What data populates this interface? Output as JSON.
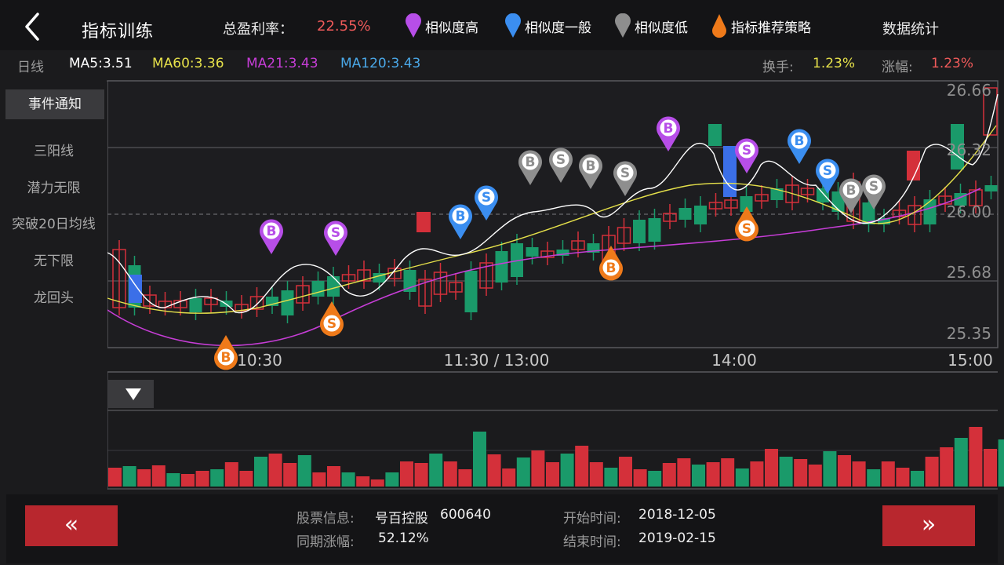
{
  "header": {
    "title": "指标训练",
    "profit_label": "总盈利率：",
    "profit_value": "22.55%",
    "legend": [
      {
        "label": "相似度高",
        "color": "#b74ee8",
        "icon": "purple-marker-icon"
      },
      {
        "label": "相似度一般",
        "color": "#3b8ef0",
        "icon": "blue-marker-icon"
      },
      {
        "label": "相似度低",
        "color": "#8e8e8e",
        "icon": "gray-marker-icon"
      },
      {
        "label": "指标推荐策略",
        "color": "#ef7a1a",
        "icon": "orange-drop-icon"
      }
    ],
    "stats_label": "数据统计"
  },
  "ma_row": {
    "period": "日线",
    "ma5": "MA5:3.51",
    "ma60": "MA60:3.36",
    "ma21": "MA21:3.43",
    "ma120": "MA120:3.43",
    "turnover_label": "换手:",
    "turnover_value": "1.23%",
    "change_label": "涨幅:",
    "change_value": "1.23%"
  },
  "sidebar": {
    "event_button": "事件通知",
    "strategies": [
      "三阳线",
      "潜力无限",
      "突破20日均线",
      "无下限",
      "龙回头"
    ]
  },
  "chart": {
    "price_ticks": [
      "26.66",
      "26.32",
      "26.00",
      "25.68",
      "25.35"
    ],
    "time_ticks": [
      "10:30",
      "11:30 / 13:00",
      "14:00",
      "15:00"
    ],
    "collapse_icon": "triangle-down-icon",
    "marker_letters": {
      "buy": "B",
      "sell": "S"
    }
  },
  "colors": {
    "up": "#d4303a",
    "down": "#1a9a6a",
    "blue": "#3b6fe8",
    "ma5": "#ffffff",
    "ma60": "#e5e04a",
    "ma21": "#c63dd6"
  },
  "footer": {
    "prev_label": "«",
    "next_label": "»",
    "stock_info_label": "股票信息:",
    "stock_name": "号百控股",
    "stock_code": "600640",
    "period_change_label": "同期涨幅:",
    "period_change_value": "52.12%",
    "start_label": "开始时间:",
    "start_value": "2018-12-05",
    "end_label": "结束时间:",
    "end_value": "2019-02-15"
  }
}
